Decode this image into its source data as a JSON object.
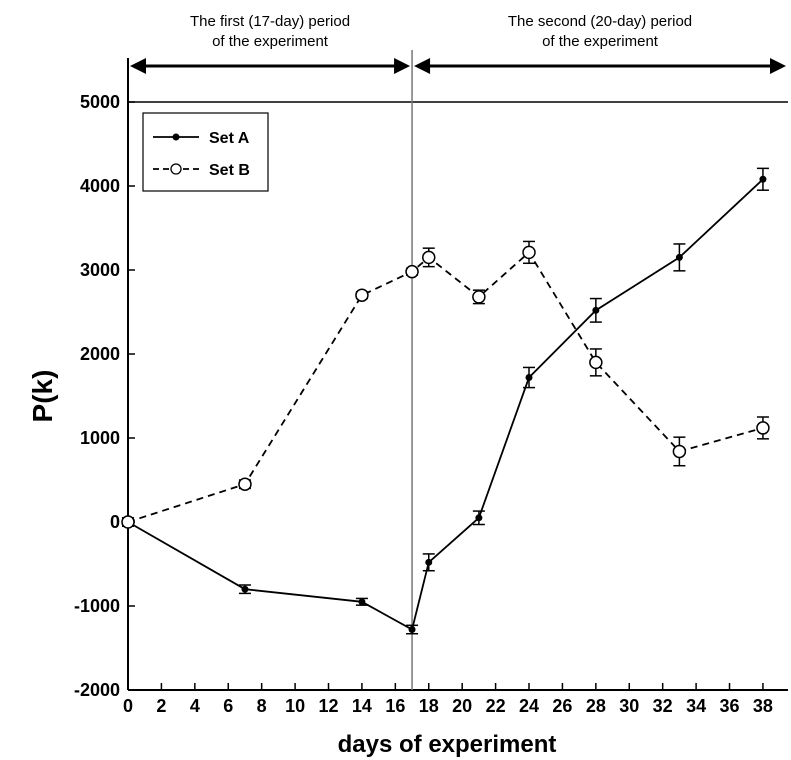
{
  "chart_data": {
    "type": "line",
    "title": "",
    "xlabel": "days of experiment",
    "ylabel": "P(k)",
    "xlim": [
      0,
      39.5
    ],
    "ylim": [
      -2000,
      5000
    ],
    "x_ticks": [
      0,
      2,
      4,
      6,
      8,
      10,
      12,
      14,
      16,
      18,
      20,
      22,
      24,
      26,
      28,
      30,
      32,
      34,
      36,
      38
    ],
    "y_ticks": [
      -2000,
      -1000,
      0,
      1000,
      2000,
      3000,
      4000,
      5000
    ],
    "divider_x": 17,
    "periods": [
      {
        "line1": "The first (17-day) period",
        "line2": "of the experiment",
        "x_range": [
          0,
          17
        ]
      },
      {
        "line1": "The second (20-day) period",
        "line2": "of the experiment",
        "x_range": [
          17,
          39.5
        ]
      }
    ],
    "legend_position": "top-left",
    "series": [
      {
        "name": "Set A",
        "style": "solid",
        "marker": "filled-dot",
        "points": [
          {
            "x": 0,
            "y": 0,
            "err": 50
          },
          {
            "x": 7,
            "y": -800,
            "err": 50
          },
          {
            "x": 14,
            "y": -950,
            "err": 40
          },
          {
            "x": 17,
            "y": -1280,
            "err": 50
          },
          {
            "x": 18,
            "y": -480,
            "err": 100
          },
          {
            "x": 21,
            "y": 50,
            "err": 80
          },
          {
            "x": 24,
            "y": 1720,
            "err": 120
          },
          {
            "x": 28,
            "y": 2520,
            "err": 140
          },
          {
            "x": 33,
            "y": 3150,
            "err": 160
          },
          {
            "x": 38,
            "y": 4080,
            "err": 130
          }
        ]
      },
      {
        "name": "Set B",
        "style": "dashed",
        "marker": "open-circle",
        "points": [
          {
            "x": 0,
            "y": 0,
            "err": 50
          },
          {
            "x": 7,
            "y": 450,
            "err": 50
          },
          {
            "x": 14,
            "y": 2700,
            "err": 40
          },
          {
            "x": 17,
            "y": 2980,
            "err": 40
          },
          {
            "x": 18,
            "y": 3150,
            "err": 110
          },
          {
            "x": 21,
            "y": 2680,
            "err": 80
          },
          {
            "x": 24,
            "y": 3210,
            "err": 130
          },
          {
            "x": 28,
            "y": 1900,
            "err": 160
          },
          {
            "x": 33,
            "y": 840,
            "err": 170
          },
          {
            "x": 38,
            "y": 1120,
            "err": 130
          }
        ]
      }
    ]
  }
}
